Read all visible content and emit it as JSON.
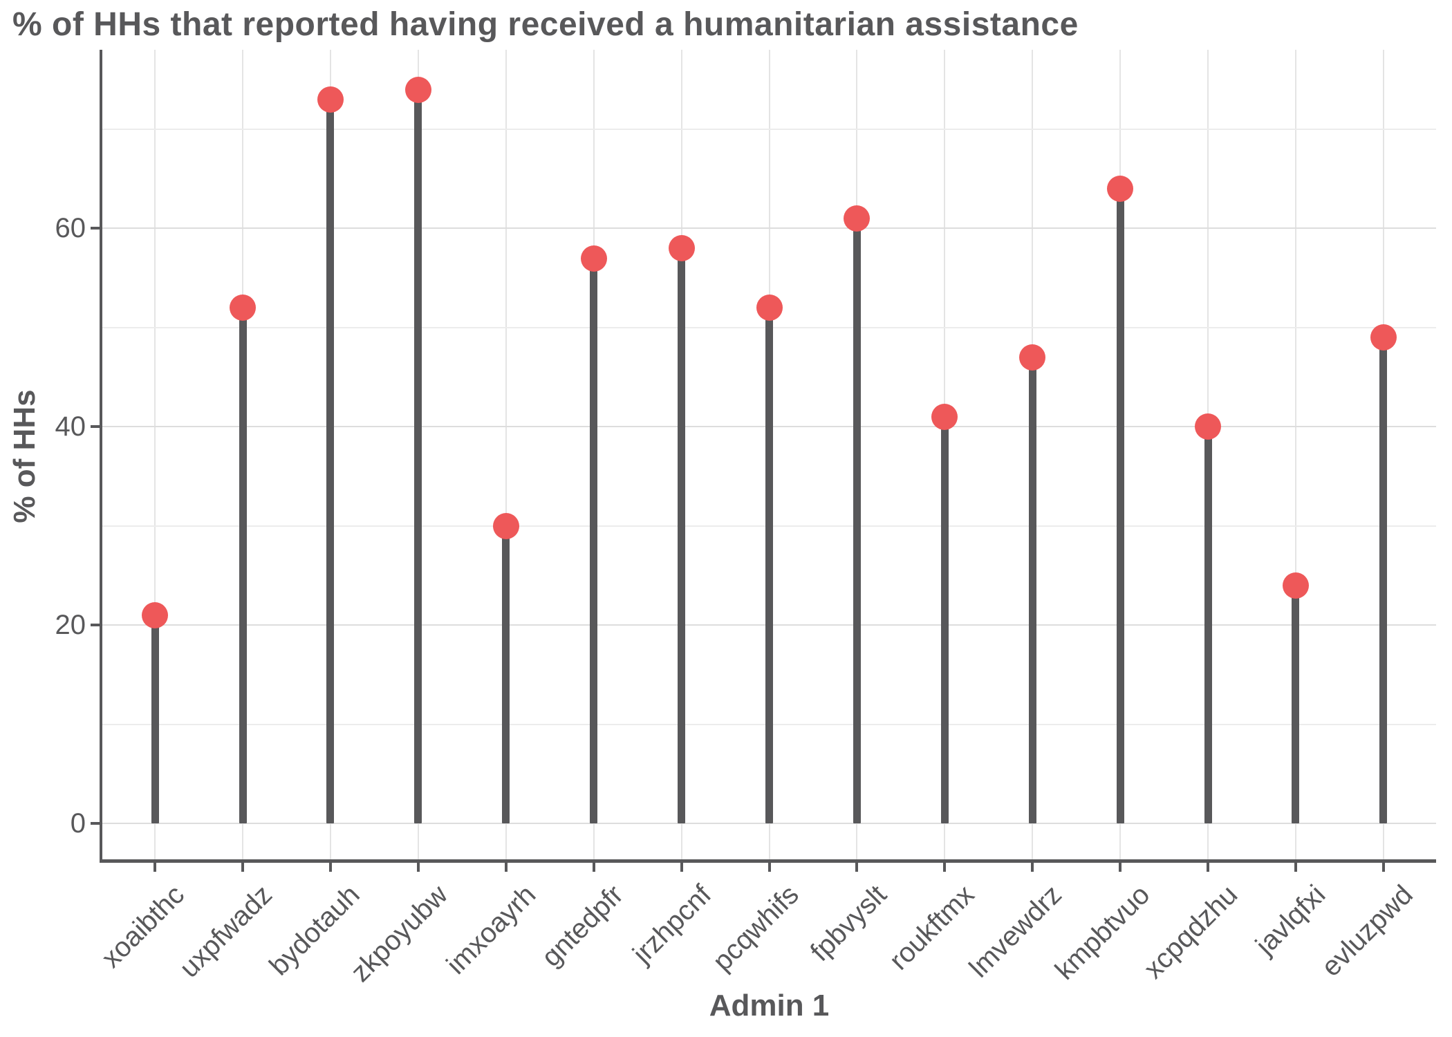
{
  "chart_data": {
    "type": "bar",
    "variant": "lollipop",
    "title": "% of HHs that reported having received a humanitarian assistance",
    "xlabel": "Admin 1",
    "ylabel": "% of HHs",
    "categories": [
      "xoaibthc",
      "uxpfwadz",
      "bydotauh",
      "zkpoyubw",
      "imxoayrh",
      "gntedpfr",
      "jrzhpcnf",
      "pcqwhifs",
      "fpbvyslt",
      "roukftmx",
      "lmvewdrz",
      "kmpbtvuo",
      "xcpqdzhu",
      "javlqfxi",
      "evluzpwd"
    ],
    "values": [
      21,
      52,
      73,
      74,
      30,
      57,
      58,
      52,
      61,
      41,
      47,
      64,
      40,
      24,
      49
    ],
    "yticks": [
      0,
      20,
      40,
      60
    ],
    "yticks_minor": [
      10,
      30,
      50,
      70
    ],
    "ylim": [
      0,
      78
    ],
    "grid": "major+minor horizontal, major vertical per category",
    "legend": "none",
    "colors": {
      "dot": "#EE5859",
      "stem": "#58585A",
      "text": "#58585A",
      "axis": "#58585A",
      "grid_major": "#DDDDDD",
      "grid_minor": "#ECECEC",
      "grid_vertical": "#E4E4E4",
      "background": "#FFFFFF"
    }
  }
}
